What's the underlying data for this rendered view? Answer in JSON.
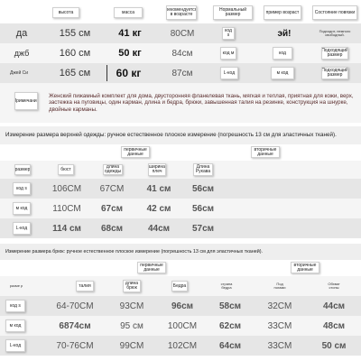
{
  "sizes_table": {
    "headers": [
      "высота",
      "масса",
      "рекомендуется в возрасте",
      "Нормальный размер",
      "пример возраст",
      "Состояние повязки"
    ],
    "rows": [
      {
        "label": "да",
        "height": "155 см",
        "weight": "41 кг",
        "age": "80СМ",
        "normal": "код s",
        "example": "эй!",
        "state": "Подходит, немного свободный."
      },
      {
        "label": "джб",
        "height": "160 см",
        "weight": "50 кг",
        "age": "84см",
        "normal": "код м",
        "example": "код",
        "state": "Подходящий размер"
      },
      {
        "label": "Джей Си",
        "height": "165 см",
        "weight": "60 кг",
        "age": "87см",
        "normal": "L-код",
        "example": "м код",
        "state": "Подходящий размер"
      }
    ],
    "desc_label": "Примечание",
    "description": "Женский пижамный комплект для дома, двусторонняя фланелевая ткань, мягкая и теплая, приятная для кожи, верх, застежка на пуговицы, один карман, длина и бедра, брюки, завышенная талия на резинке, конструкция на шнурке, двойные карманы."
  },
  "top_section": {
    "title": "Измерение размера верхней одежды: ручное естественное плоское измерение (погрешность 13 см для эластичных тканей).",
    "first_data_label": "первичные данные",
    "second_data_label": "вторичные данные",
    "headers": [
      "размер",
      "бюст",
      "длина одежды",
      "ширина плеч",
      "Длина Рукава"
    ],
    "rows": [
      {
        "size": "код s",
        "bust": "106CM",
        "length": "67CM",
        "shoulder": "41 см",
        "sleeve": "56см"
      },
      {
        "size": "м код",
        "bust": "110CM",
        "length": "67см",
        "shoulder": "42 см",
        "sleeve": "56см"
      },
      {
        "size": "L-код",
        "bust": "114 см",
        "length": "68см",
        "shoulder": "44см",
        "sleeve": "57см"
      }
    ]
  },
  "pants_section": {
    "title": "Измерение размера брюк: ручное естественное плоское измерение (погрешность 13 см для эластичных тканей).",
    "first_data_label": "первичные данные",
    "second_data_label": "вторичные данные",
    "headers": [
      "разме р",
      "талия",
      "длина брюк",
      "Бедра",
      "страна бедра",
      "Под ногами",
      "Обхват стопы"
    ],
    "rows": [
      {
        "size": "код s",
        "waist": "64-70CM",
        "length": "93CM",
        "hips": "96см",
        "thigh": "58см",
        "under": "32CM",
        "foot": "44см"
      },
      {
        "size": "м код",
        "waist": "6874см",
        "length": "95 см",
        "hips": "100CM",
        "thigh": "62см",
        "under": "33CM",
        "foot": "48см"
      },
      {
        "size": "L-код",
        "waist": "70-76CM",
        "length": "99CM",
        "hips": "102CM",
        "thigh": "64см",
        "under": "33CM",
        "foot": "50 см"
      }
    ]
  }
}
